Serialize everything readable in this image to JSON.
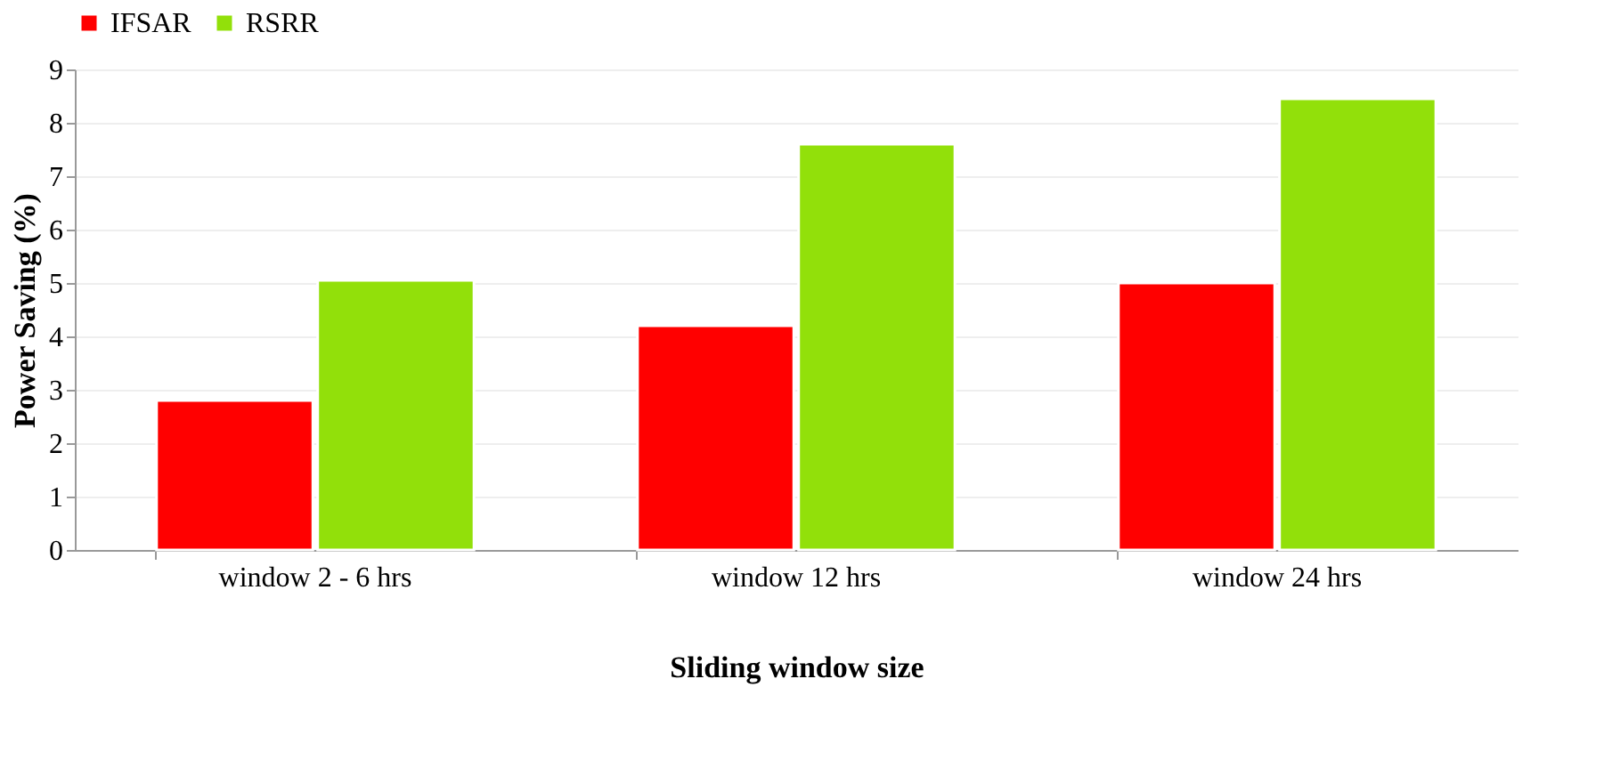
{
  "chart_data": {
    "type": "bar",
    "xlabel": "Sliding window size",
    "ylabel": "Power Saving (%)",
    "categories": [
      "window 2 - 6 hrs",
      "window 12 hrs",
      "window 24 hrs"
    ],
    "series": [
      {
        "name": "IFSAR",
        "color": "#ff0000",
        "values": [
          2.8,
          4.2,
          5.0
        ]
      },
      {
        "name": "RSRR",
        "color": "#92e00a",
        "values": [
          5.05,
          7.6,
          8.45
        ]
      }
    ],
    "ylim": [
      0,
      9
    ],
    "yticks": [
      0,
      1,
      2,
      3,
      4,
      5,
      6,
      7,
      8,
      9
    ],
    "grid": "y",
    "legend": "top"
  }
}
